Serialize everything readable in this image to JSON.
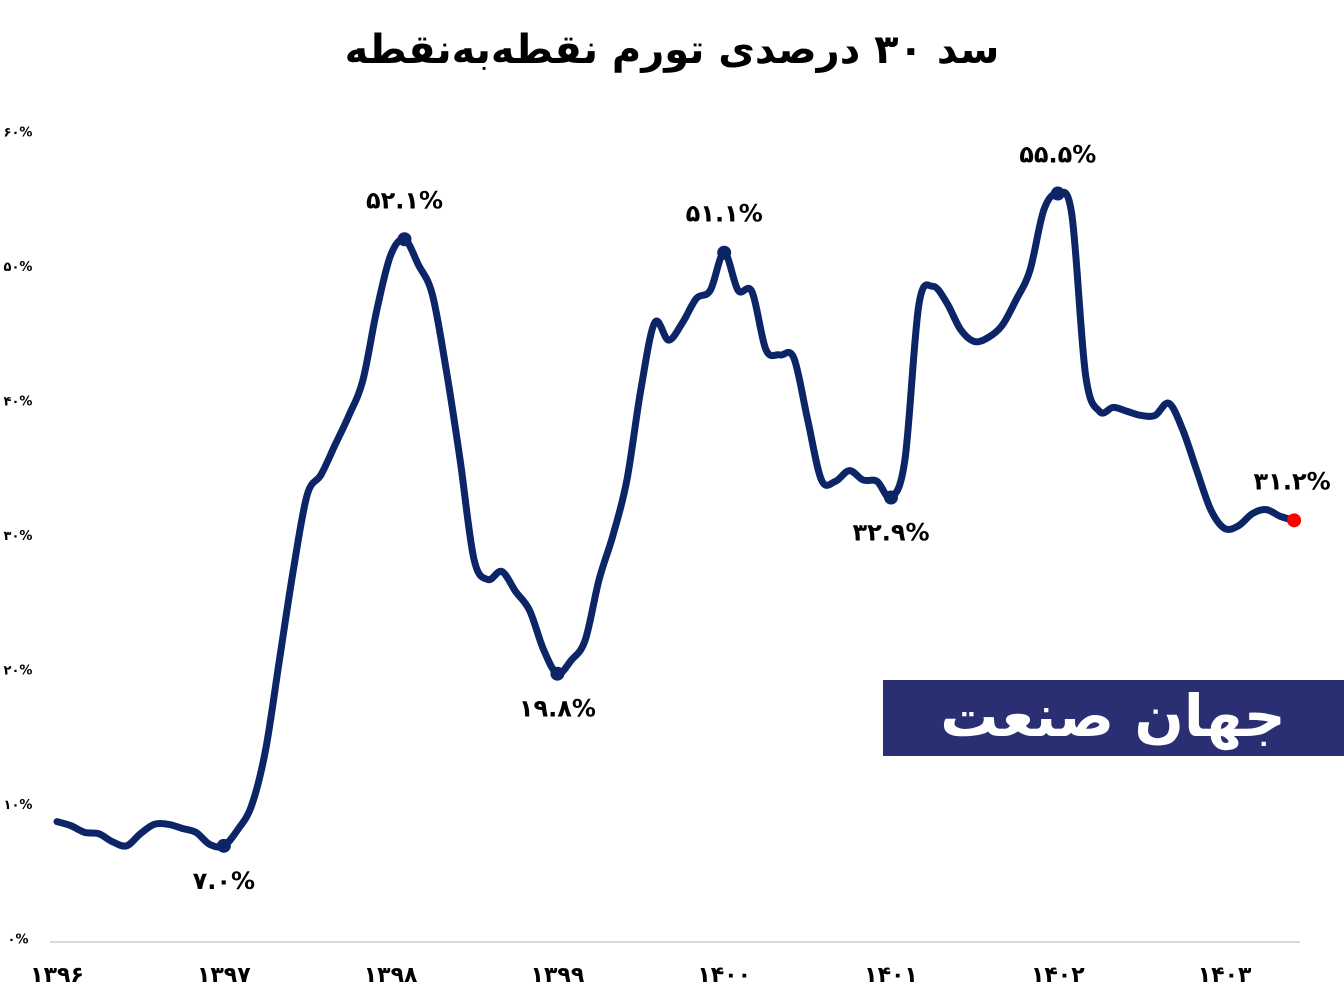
{
  "chart_data": {
    "type": "line",
    "title": "سد ۳۰ درصدی تورم نقطه‌به‌نقطه",
    "watermark": "جهان صنعت",
    "categories": [
      "۱۳۹۶",
      null,
      null,
      null,
      null,
      null,
      null,
      null,
      null,
      null,
      null,
      null,
      "۱۳۹۷",
      null,
      null,
      null,
      null,
      null,
      null,
      null,
      null,
      null,
      null,
      null,
      "۱۳۹۸",
      null,
      null,
      null,
      null,
      null,
      null,
      null,
      null,
      null,
      null,
      null,
      "۱۳۹۹",
      null,
      null,
      null,
      null,
      null,
      null,
      null,
      null,
      null,
      null,
      null,
      "۱۴۰۰",
      null,
      null,
      null,
      null,
      null,
      null,
      null,
      null,
      null,
      null,
      null,
      "۱۴۰۱",
      null,
      null,
      null,
      null,
      null,
      null,
      null,
      null,
      null,
      null,
      null,
      "۱۴۰۲",
      null,
      null,
      null,
      null,
      null,
      null,
      null,
      null,
      null,
      null,
      null,
      "۱۴۰۳",
      null,
      null,
      null,
      null,
      null
    ],
    "series": [
      {
        "color": "#0b2566",
        "values": [
          8.8,
          8.5,
          8.0,
          7.9,
          7.3,
          7.0,
          7.9,
          8.6,
          8.6,
          8.3,
          8.0,
          7.1,
          7.0,
          8.2,
          10.0,
          14.1,
          20.8,
          27.5,
          33.1,
          34.6,
          36.8,
          39.0,
          41.6,
          46.8,
          50.9,
          52.1,
          50.2,
          48.0,
          42.4,
          35.7,
          28.3,
          26.8,
          27.4,
          25.9,
          24.5,
          21.6,
          19.8,
          20.8,
          22.3,
          26.8,
          30.1,
          34.2,
          40.9,
          45.9,
          44.6,
          45.9,
          47.7,
          48.3,
          51.1,
          48.3,
          48.2,
          43.9,
          43.5,
          43.3,
          38.7,
          34.2,
          34.1,
          34.9,
          34.2,
          34.1,
          32.9,
          35.7,
          47.2,
          48.6,
          47.4,
          45.4,
          44.5,
          44.8,
          45.7,
          47.6,
          49.8,
          54.3,
          55.5,
          54.0,
          42.0,
          39.3,
          39.6,
          39.3,
          39.0,
          39.0,
          39.9,
          37.9,
          34.9,
          32.0,
          30.6,
          30.8,
          31.7,
          32.0,
          31.5,
          31.2
        ],
        "value_labels": [
          null,
          null,
          null,
          null,
          null,
          null,
          null,
          null,
          null,
          null,
          null,
          null,
          "۷.۰%",
          null,
          null,
          null,
          null,
          null,
          null,
          null,
          null,
          null,
          null,
          null,
          null,
          "۵۲.۱%",
          null,
          null,
          null,
          null,
          null,
          null,
          null,
          null,
          null,
          null,
          "۱۹.۸%",
          null,
          null,
          null,
          null,
          null,
          null,
          null,
          null,
          null,
          null,
          null,
          "۵۱.۱%",
          null,
          null,
          null,
          null,
          null,
          null,
          null,
          null,
          null,
          null,
          null,
          "۳۲.۹%",
          null,
          null,
          null,
          null,
          null,
          null,
          null,
          null,
          null,
          null,
          null,
          "۵۵.۵%",
          null,
          null,
          null,
          null,
          null,
          null,
          null,
          null,
          null,
          null,
          null,
          null,
          null,
          null,
          null,
          null,
          "۳۱.۲%"
        ]
      }
    ],
    "last_point_color": "#ff0000",
    "ylim": [
      0,
      60
    ],
    "yticks": [
      {
        "value": 0,
        "label": "۰%"
      },
      {
        "value": 10,
        "label": "۱۰%"
      },
      {
        "value": 20,
        "label": "۲۰%"
      },
      {
        "value": 30,
        "label": "۳۰%"
      },
      {
        "value": 40,
        "label": "۴۰%"
      },
      {
        "value": 50,
        "label": "۵۰%"
      },
      {
        "value": 60,
        "label": "۶۰%"
      }
    ],
    "grid": false
  }
}
